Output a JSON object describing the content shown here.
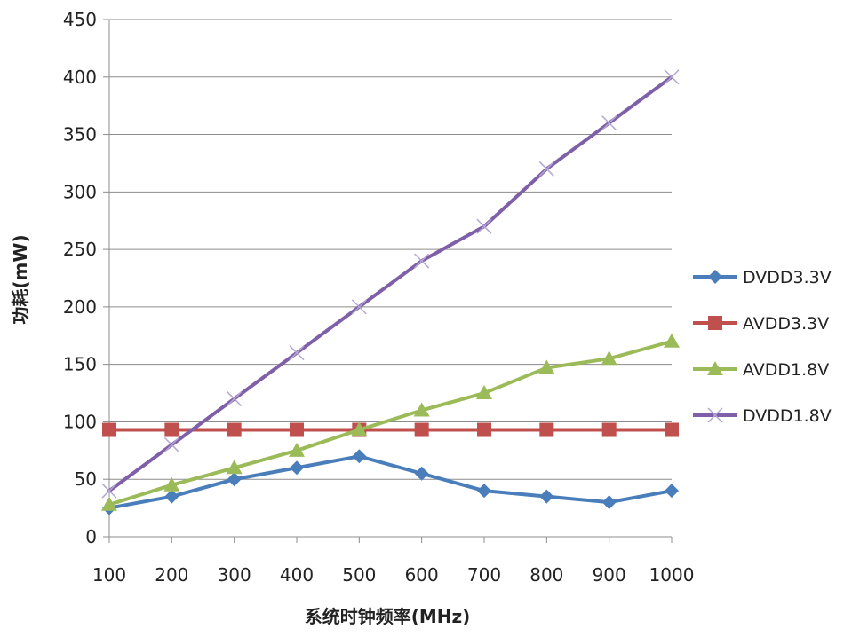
{
  "chart_data": {
    "type": "line",
    "title": "",
    "xlabel": "系统时钟频率(MHz)",
    "ylabel": "功耗(mW)",
    "categories": [
      100,
      200,
      300,
      400,
      500,
      600,
      700,
      800,
      900,
      1000
    ],
    "ylim": [
      0,
      450
    ],
    "yticks": [
      0,
      50,
      100,
      150,
      200,
      250,
      300,
      350,
      400,
      450
    ],
    "grid": "horizontal",
    "legend_position": "right",
    "series": [
      {
        "name": "DVDD3.3V",
        "color": "#4a7ebb",
        "marker": "diamond",
        "values": [
          25,
          35,
          50,
          60,
          70,
          55,
          40,
          35,
          30,
          40
        ]
      },
      {
        "name": "AVDD3.3V",
        "color": "#c0504d",
        "marker": "square",
        "values": [
          93,
          93,
          93,
          93,
          93,
          93,
          93,
          93,
          93,
          93
        ]
      },
      {
        "name": "AVDD1.8V",
        "color": "#9bbb59",
        "marker": "triangle",
        "values": [
          28,
          45,
          60,
          75,
          93,
          110,
          125,
          147,
          155,
          170
        ]
      },
      {
        "name": "DVDD1.8V",
        "color": "#7f5fa7",
        "marker": "x",
        "values": [
          40,
          80,
          120,
          160,
          200,
          240,
          270,
          320,
          360,
          400
        ]
      }
    ]
  }
}
